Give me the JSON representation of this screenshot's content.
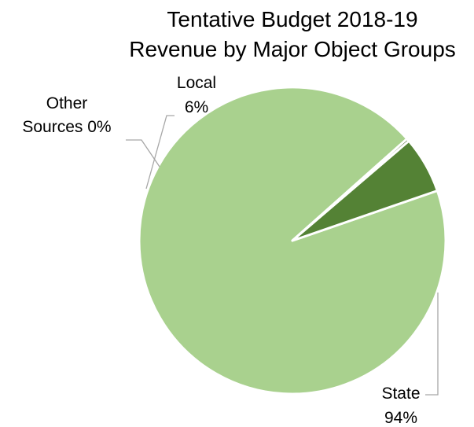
{
  "chart_data": {
    "type": "pie",
    "title_lines": [
      "Tentative Budget 2018-19",
      "Revenue by Major Object Groups"
    ],
    "slices": [
      {
        "name": "State",
        "value": 94,
        "label_lines": [
          "State",
          "94%"
        ],
        "color": "#a9d18e"
      },
      {
        "name": "Other Sources",
        "value": 0.3,
        "label_lines": [
          "Other",
          "Sources 0%"
        ],
        "color": "#385723"
      },
      {
        "name": "Local",
        "value": 6,
        "label_lines": [
          "Local",
          "6%"
        ],
        "color": "#548235"
      }
    ],
    "legend": "none",
    "start_angle_deg": 71
  }
}
